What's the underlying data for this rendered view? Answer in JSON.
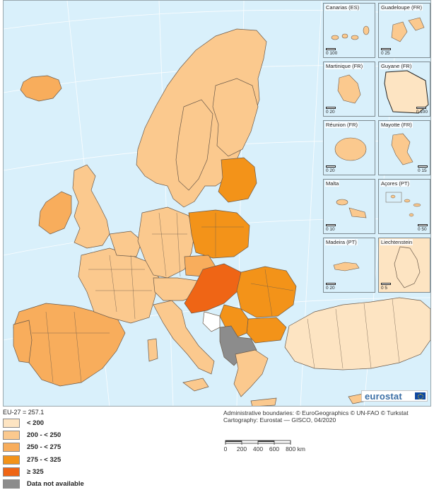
{
  "map": {
    "legend": {
      "eu_average": "EU-27 = 257.1",
      "classes": [
        {
          "label": "< 200",
          "color": "#fde4c2"
        },
        {
          "label": "200 - < 250",
          "color": "#fbc98e"
        },
        {
          "label": "250 - < 275",
          "color": "#f8ad5c"
        },
        {
          "label": "275 - < 325",
          "color": "#f39319"
        },
        {
          "label": "≥ 325",
          "color": "#ef6515"
        },
        {
          "label": "Data not available",
          "color": "#8c8c8c"
        }
      ]
    },
    "insets": [
      {
        "label": "Canarias (ES)",
        "scale": "0  100",
        "fill": "#fbc98e"
      },
      {
        "label": "Guadeloupe (FR)",
        "scale": "0  25",
        "fill": "#fbc98e"
      },
      {
        "label": "Martinique (FR)",
        "scale": "0  20",
        "fill": "#fbc98e"
      },
      {
        "label": "Guyane (FR)",
        "scale": "0  100",
        "fill": "#fde4c2"
      },
      {
        "label": "Réunion (FR)",
        "scale": "0  20",
        "fill": "#fbc98e"
      },
      {
        "label": "Mayotte (FR)",
        "scale": "0  15",
        "fill": "#fbc98e"
      },
      {
        "label": "Malta",
        "scale": "0  10",
        "fill": "#fbc98e"
      },
      {
        "label": "Açores (PT)",
        "scale": "0  50",
        "fill": "#fbc98e"
      },
      {
        "label": "Madeira (PT)",
        "scale": "0  20",
        "fill": "#fbc98e"
      },
      {
        "label": "Liechtenstein",
        "scale": "0  5",
        "fill": "#fde4c2"
      }
    ],
    "credits": {
      "boundaries": "Administrative boundaries: © EuroGeographics © UN-FAO © Turkstat",
      "cartography": "Cartography: Eurostat — GISCO, 04/2020"
    },
    "scale_bar": {
      "labels": [
        "0",
        "200",
        "400",
        "600",
        "800 km"
      ]
    },
    "logo": {
      "text": "eurostat",
      "flag": "eu-flag-icon"
    }
  }
}
